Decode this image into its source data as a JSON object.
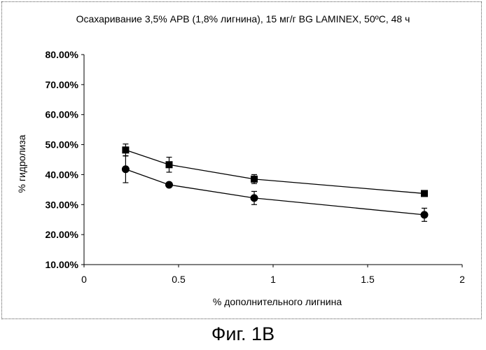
{
  "title": "Осахаривание 3,5% APB (1,8% лигнина), 15 мг/г BG LAMINEX, 50ºC, 48 ч",
  "caption": "Фиг. 1В",
  "chart_data": {
    "type": "line",
    "title": "Осахаривание 3,5% APB (1,8% лигнина), 15 мг/г BG LAMINEX, 50ºC, 48 ч",
    "xlabel": "% дополнительного лигнина",
    "ylabel": "% гидролиза",
    "xlim": [
      0,
      2
    ],
    "ylim": [
      10,
      80
    ],
    "x_ticks": [
      0,
      0.5,
      1,
      1.5,
      2
    ],
    "x_tick_labels": [
      "0",
      "0.5",
      "1",
      "1.5",
      "2"
    ],
    "y_ticks": [
      10,
      20,
      30,
      40,
      50,
      60,
      70,
      80
    ],
    "y_tick_labels": [
      "10.00%",
      "20.00%",
      "30.00%",
      "40.00%",
      "50.00%",
      "60.00%",
      "70.00%",
      "80.00%"
    ],
    "grid": false,
    "legend": "none",
    "series": [
      {
        "marker": "square",
        "color": "#000000",
        "x": [
          0.22,
          0.45,
          0.9,
          1.8
        ],
        "y": [
          48.2,
          43.3,
          38.5,
          33.7
        ],
        "err": [
          2.0,
          2.5,
          1.5,
          0.5
        ]
      },
      {
        "marker": "circle",
        "color": "#000000",
        "x": [
          0.22,
          0.45,
          0.9,
          1.8
        ],
        "y": [
          41.8,
          36.6,
          32.2,
          26.6
        ],
        "err": [
          4.5,
          0.5,
          2.2,
          2.2
        ]
      }
    ]
  }
}
